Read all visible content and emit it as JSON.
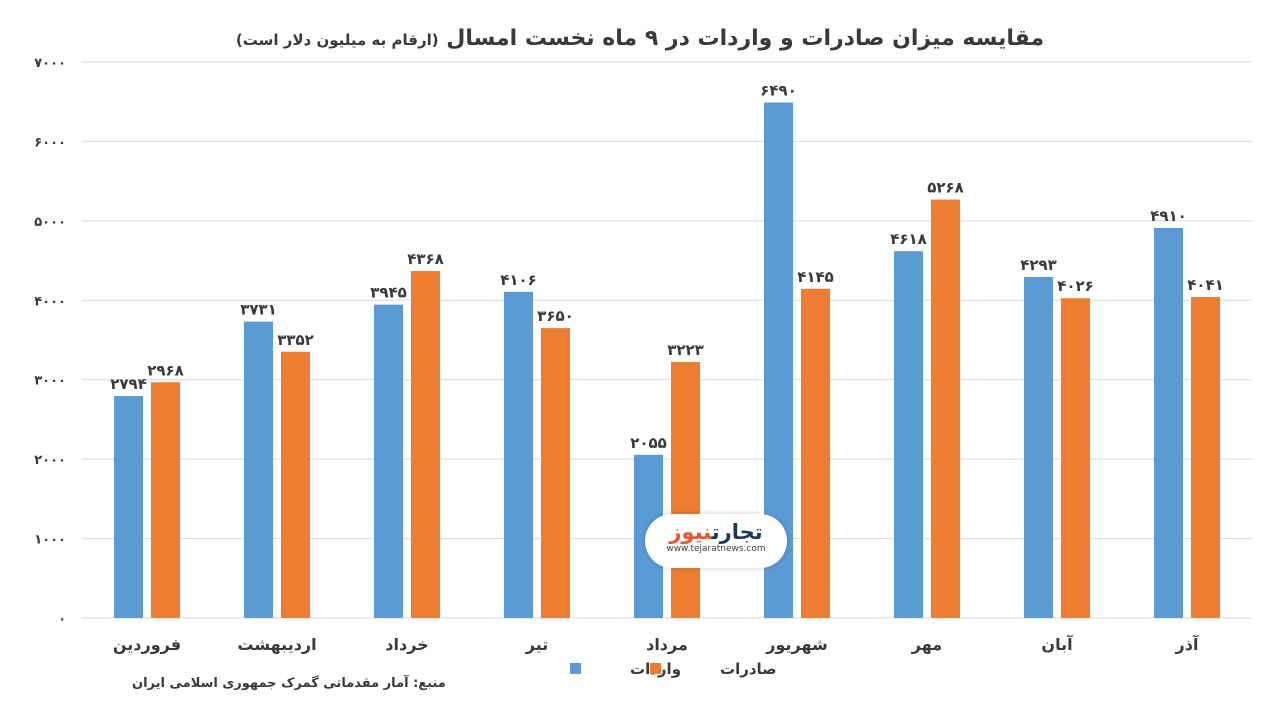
{
  "title": "مقایسه میزان صادرات و واردات در ۹ ماه نخست امسال",
  "subtitle": "(ارقام به میلیون دلار است)",
  "source": "منبع: آمار مقدماتی گمرک جمهوری اسلامی ایران",
  "watermark": {
    "name_part1": "تجارت",
    "name_part2": "نیوز",
    "url": "www.tejaratnews.com"
  },
  "colors": {
    "imports": "#5b9bd5",
    "exports": "#ed7d31",
    "grid": "#d9d9d9",
    "text": "#3a3a3a"
  },
  "chart_data": {
    "type": "bar",
    "categories": [
      "فروردین",
      "اردیبهشت",
      "خرداد",
      "تیر",
      "مرداد",
      "شهریور",
      "مهر",
      "آبان",
      "آذر"
    ],
    "series": [
      {
        "name": "واردات",
        "values": [
          2794,
          3731,
          3945,
          4106,
          2055,
          6490,
          4618,
          4293,
          4910
        ],
        "labels": [
          "۲۷۹۴",
          "۳۷۳۱",
          "۳۹۴۵",
          "۴۱۰۶",
          "۲۰۵۵",
          "۶۴۹۰",
          "۴۶۱۸",
          "۴۲۹۳",
          "۴۹۱۰"
        ]
      },
      {
        "name": "صادرات",
        "values": [
          2968,
          3352,
          4368,
          3650,
          3223,
          4145,
          5268,
          4026,
          4041
        ],
        "labels": [
          "۲۹۶۸",
          "۳۳۵۲",
          "۴۳۶۸",
          "۳۶۵۰",
          "۳۲۲۳",
          "۴۱۴۵",
          "۵۲۶۸",
          "۴۰۲۶",
          "۴۰۴۱"
        ]
      }
    ],
    "ylim": [
      0,
      7000
    ],
    "yticks": [
      0,
      1000,
      2000,
      3000,
      4000,
      5000,
      6000,
      7000
    ],
    "ytick_labels": [
      "۰",
      "۱۰۰۰",
      "۲۰۰۰",
      "۳۰۰۰",
      "۴۰۰۰",
      "۵۰۰۰",
      "۶۰۰۰",
      "۷۰۰۰"
    ],
    "grid": true,
    "legend_position": "bottom"
  }
}
